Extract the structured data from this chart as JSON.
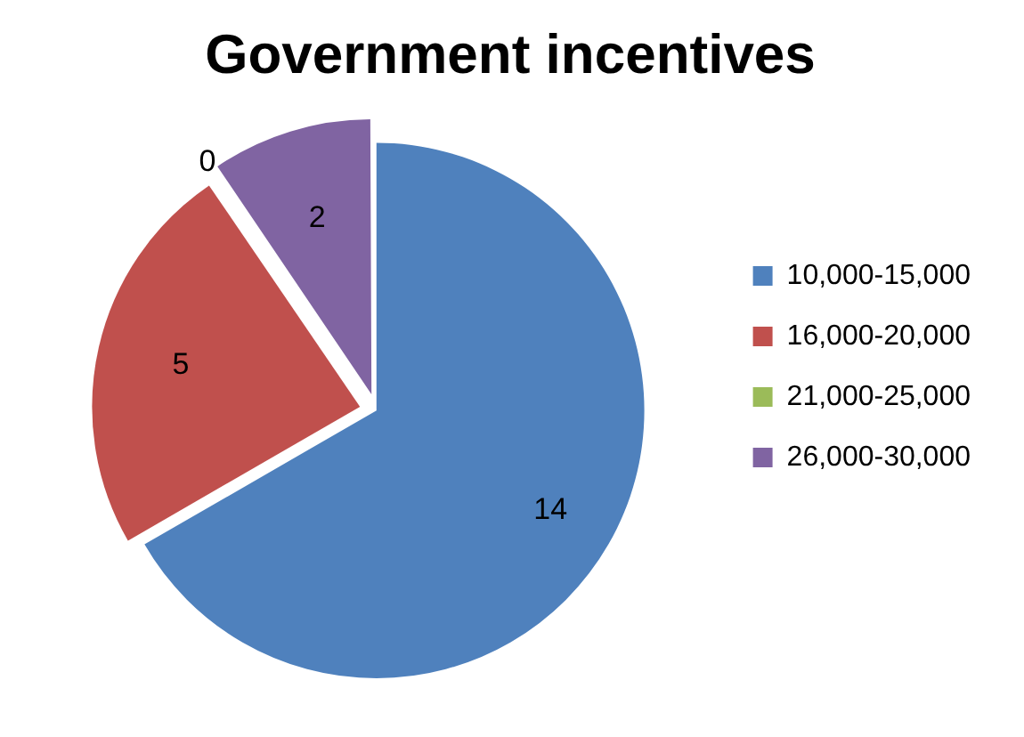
{
  "chart_data": {
    "type": "pie",
    "title": "Government incentives",
    "categories": [
      "10,000-15,000",
      "16,000-20,000",
      "21,000-25,000",
      "26,000-30,000"
    ],
    "values": [
      14,
      5,
      0,
      2
    ],
    "colors": [
      "#4f81bd",
      "#c0504d",
      "#9bbb59",
      "#8064a2"
    ],
    "value_labels": [
      "14",
      "5",
      "0",
      "2"
    ],
    "legend": "right"
  }
}
